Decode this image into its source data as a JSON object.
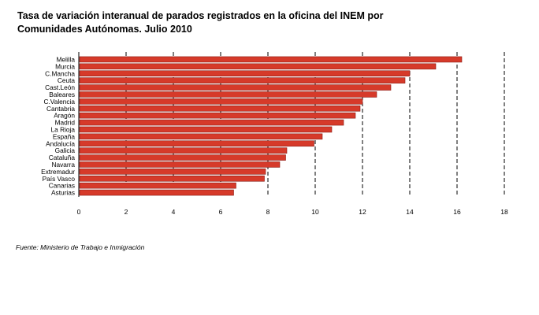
{
  "title_line1": "Tasa de variación interanual de parados registrados en la oficina del INEM por",
  "title_line2": "Comunidades Autónomas. Julio 2010",
  "source": "Fuente: Ministerio de Trabajo e Inmigración",
  "chart_data": {
    "type": "bar",
    "orientation": "horizontal",
    "categories": [
      "Melilla",
      "Murcia",
      "C.Mancha",
      "Ceuta",
      "Cast.León",
      "Baleares",
      "C.Valencia",
      "Cantabria",
      "Aragón",
      "Madrid",
      "La Rioja",
      "España",
      "Andalucía",
      "Galicia",
      "Cataluña",
      "Navarra",
      "Extremadur",
      "País Vasco",
      "Canarias",
      "Asturias"
    ],
    "values": [
      16.2,
      15.1,
      14.0,
      13.8,
      13.2,
      12.6,
      12.0,
      11.9,
      11.7,
      11.2,
      10.7,
      10.3,
      9.95,
      8.8,
      8.75,
      8.5,
      7.9,
      7.85,
      6.65,
      6.55
    ],
    "xlim": [
      0,
      18
    ],
    "xticks": [
      "0",
      "2",
      "4",
      "6",
      "8",
      "10",
      "12",
      "14",
      "16",
      "18"
    ],
    "grid": "dashed vertical",
    "bar_color": "#d63a2a",
    "bar_edge_color": "#8a1c14"
  }
}
